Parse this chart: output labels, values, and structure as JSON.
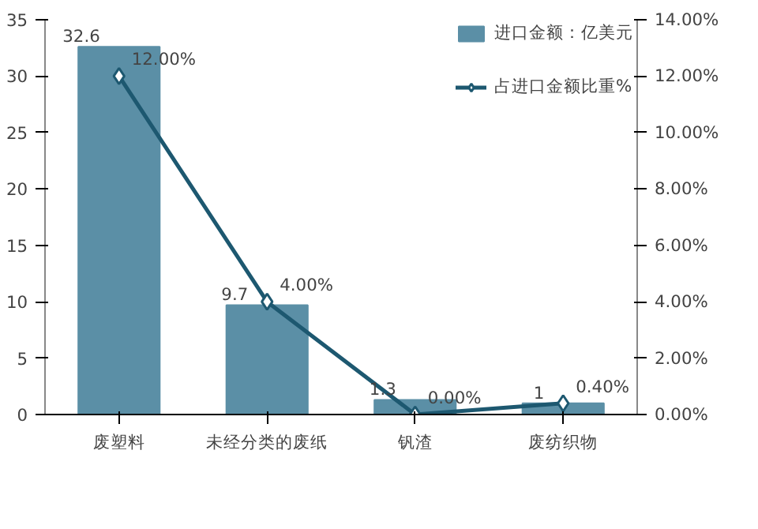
{
  "chart_data": {
    "type": "bar",
    "categories": [
      "废塑料",
      "未经分类的废纸",
      "钒渣",
      "废纺织物"
    ],
    "series": [
      {
        "name": "进口金额：亿美元",
        "color": "#5b8fa6",
        "values": [
          32.6,
          9.7,
          1.3,
          1
        ],
        "value_labels": [
          "32.6",
          "9.7",
          "1.3",
          "1"
        ]
      },
      {
        "name": "占进口金额比重%",
        "type": "line",
        "axis": "y2",
        "color": "#1d5870",
        "marker": "diamond",
        "values": [
          12,
          4,
          0,
          0.4
        ],
        "value_labels": [
          "12.00%",
          "4.00%",
          "0.00%",
          "0.40%"
        ]
      }
    ],
    "ylim": [
      0,
      35
    ],
    "yticks": [
      0,
      5,
      10,
      15,
      20,
      25,
      30,
      35
    ],
    "y2lim": [
      0,
      14
    ],
    "y2ticks": [
      {
        "value": 0,
        "label": "0.00%"
      },
      {
        "value": 2,
        "label": "2.00%"
      },
      {
        "value": 4,
        "label": "4.00%"
      },
      {
        "value": 6,
        "label": "6.00%"
      },
      {
        "value": 8,
        "label": "8.00%"
      },
      {
        "value": 10,
        "label": "10.00%"
      },
      {
        "value": 12,
        "label": "12.00%"
      },
      {
        "value": 14,
        "label": "14.00%"
      }
    ],
    "grid": false,
    "legend": "top right"
  }
}
